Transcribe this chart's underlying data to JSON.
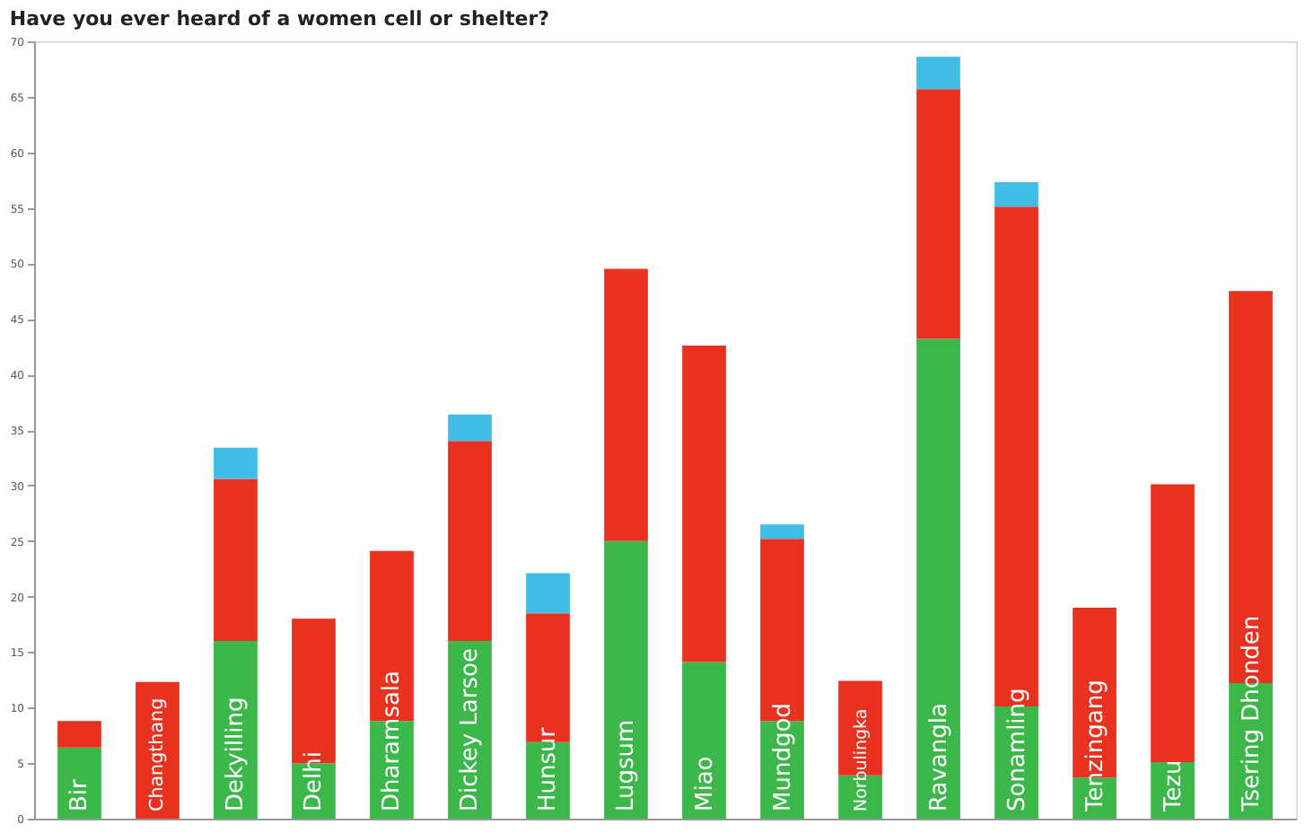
{
  "chart_data": {
    "type": "bar",
    "title": "Have you ever heard of a women cell or shelter?",
    "stacked": true,
    "grid": false,
    "legend": false,
    "categories": [
      "Bir",
      "Changthang",
      "Dekyilling",
      "Delhi",
      "Dharamsala",
      "Dickey Larsoe",
      "Hunsur",
      "Lugsum",
      "Miao",
      "Mundgod",
      "Norbulingka",
      "Ravangla",
      "Sonamling",
      "Tenzingang",
      "Tezu",
      "Tsering Dhonden"
    ],
    "series": [
      {
        "color": "#3cb84a",
        "values": [
          6.4,
          0,
          16,
          5,
          8.8,
          16,
          6.9,
          25,
          14.1,
          8.8,
          3.9,
          43.2,
          10.1,
          3.7,
          5.1,
          12.2
        ]
      },
      {
        "color": "#e8321f",
        "values": [
          2.4,
          12.3,
          14.6,
          13,
          15.3,
          18,
          11.6,
          24.5,
          28.5,
          16.4,
          8.5,
          22.5,
          45,
          15.3,
          25,
          35.3
        ]
      },
      {
        "color": "#41bde8",
        "values": [
          0,
          0,
          2.8,
          0,
          0,
          2.4,
          3.6,
          0,
          0,
          1.3,
          0,
          2.9,
          2.2,
          0,
          0,
          0
        ]
      }
    ],
    "ylim": [
      0,
      70
    ],
    "yticks": [
      0,
      5,
      10,
      15,
      20,
      25,
      30,
      35,
      40,
      45,
      50,
      55,
      60,
      65,
      70
    ]
  }
}
